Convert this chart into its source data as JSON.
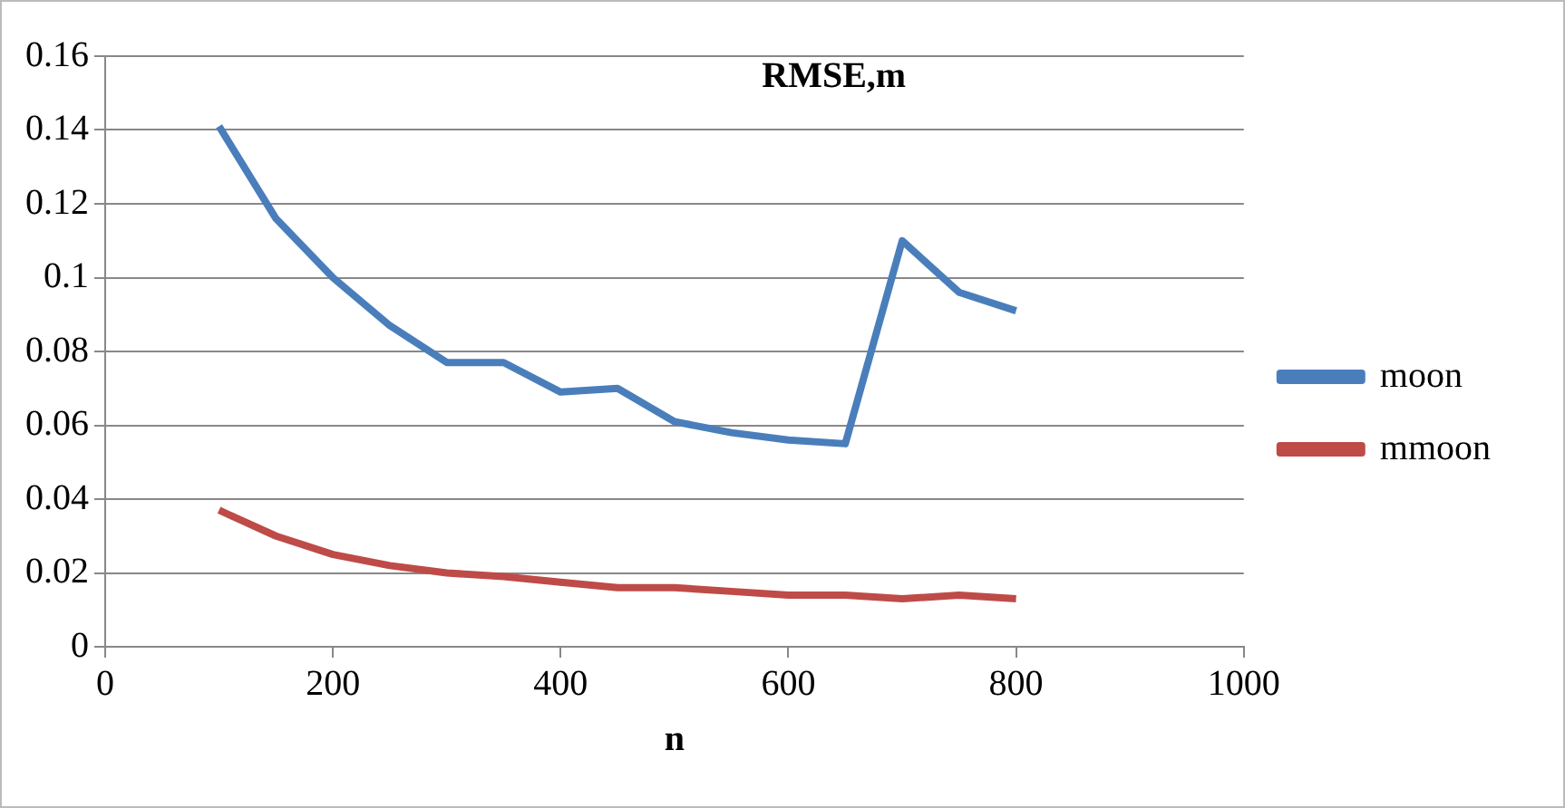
{
  "chart_data": {
    "type": "line",
    "title": "RMSE,m",
    "xlabel": "n",
    "x": [
      100,
      150,
      200,
      250,
      300,
      350,
      400,
      450,
      500,
      550,
      600,
      650,
      700,
      750,
      800
    ],
    "series": [
      {
        "name": "moon",
        "color": "#4a7ebb",
        "values": [
          0.141,
          0.116,
          0.1,
          0.087,
          0.077,
          0.077,
          0.069,
          0.07,
          0.061,
          0.058,
          0.056,
          0.055,
          0.11,
          0.096,
          0.091
        ]
      },
      {
        "name": "mmoon",
        "color": "#be4b48",
        "values": [
          0.037,
          0.03,
          0.025,
          0.022,
          0.02,
          0.019,
          0.0175,
          0.016,
          0.016,
          0.015,
          0.014,
          0.014,
          0.013,
          0.014,
          0.013
        ]
      }
    ],
    "xlim": [
      0,
      1000
    ],
    "xticks": [
      0,
      200,
      400,
      600,
      800,
      1000
    ],
    "ylim": [
      0,
      0.16
    ],
    "yticks": [
      0,
      0.02,
      0.04,
      0.06,
      0.08,
      0.1,
      0.12,
      0.14,
      0.16
    ],
    "grid": "y",
    "legend": "right",
    "marker": "none",
    "line_style": "solid"
  }
}
